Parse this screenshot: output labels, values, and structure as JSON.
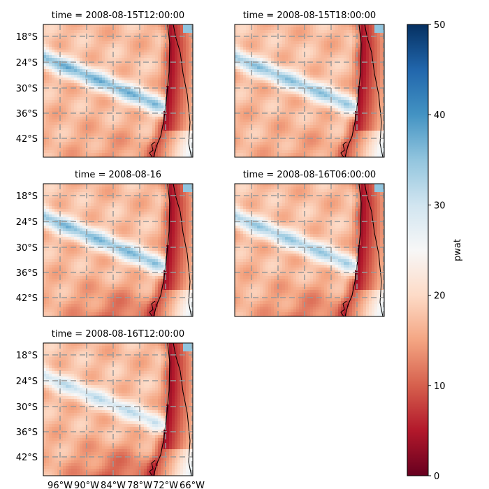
{
  "chart_data": {
    "type": "heatmap",
    "variable": "pwat",
    "colormap": "RdBu",
    "colormap_colors": [
      "#67001f",
      "#b2182b",
      "#d6604d",
      "#f4a582",
      "#fddbc7",
      "#f7f7f7",
      "#d1e5f0",
      "#92c5de",
      "#4393c3",
      "#2166ac",
      "#053061"
    ],
    "colorbar": {
      "label": "pwat",
      "range": [
        0,
        50
      ],
      "ticks": [
        "0",
        "10",
        "20",
        "30",
        "40",
        "50"
      ]
    },
    "x_tick_labels": [
      "96°W",
      "90°W",
      "84°W",
      "78°W",
      "72°W",
      "66°W"
    ],
    "y_tick_labels": [
      "18°S",
      "24°S",
      "30°S",
      "36°S",
      "42°S"
    ],
    "panels": [
      {
        "title": "time = 2008-08-15T12:00:00",
        "band_peak": 34,
        "south_dry": 0.3
      },
      {
        "title": "time = 2008-08-15T18:00:00",
        "band_peak": 32,
        "south_dry": 0.25
      },
      {
        "title": "time = 2008-08-16",
        "band_peak": 33,
        "south_dry": 0.7
      },
      {
        "title": "time = 2008-08-16T06:00:00",
        "band_peak": 31,
        "south_dry": 0.6
      },
      {
        "title": "time = 2008-08-16T12:00:00",
        "band_peak": 28,
        "south_dry": 0.8
      }
    ]
  }
}
